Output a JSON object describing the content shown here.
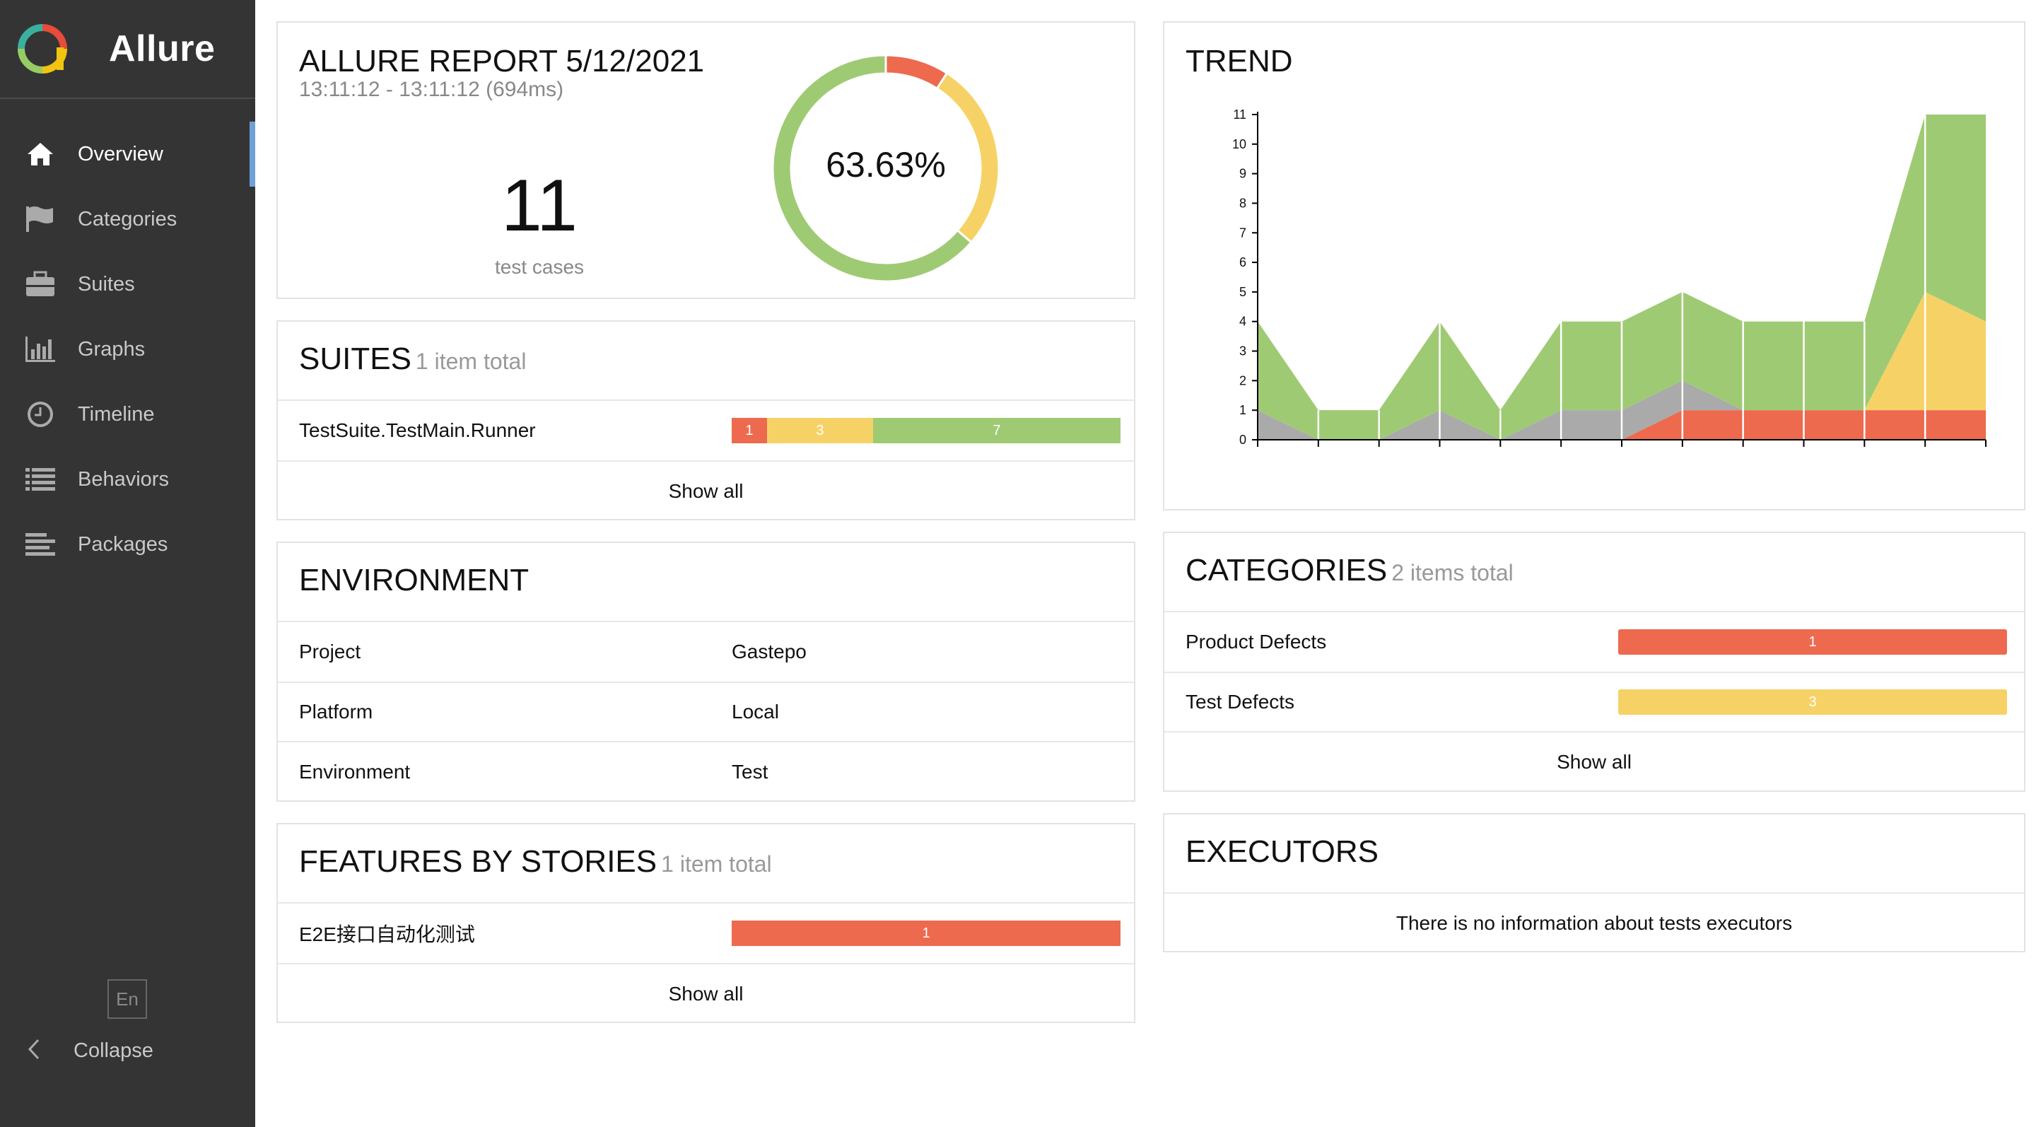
{
  "app": {
    "name": "Allure"
  },
  "sidebar": {
    "items": [
      {
        "label": "Overview",
        "icon": "home-icon",
        "active": true
      },
      {
        "label": "Categories",
        "icon": "flag-icon",
        "active": false
      },
      {
        "label": "Suites",
        "icon": "briefcase-icon",
        "active": false
      },
      {
        "label": "Graphs",
        "icon": "bar-chart-icon",
        "active": false
      },
      {
        "label": "Timeline",
        "icon": "clock-icon",
        "active": false
      },
      {
        "label": "Behaviors",
        "icon": "list-icon",
        "active": false
      },
      {
        "label": "Packages",
        "icon": "align-left-icon",
        "active": false
      }
    ],
    "language": "En",
    "collapse_label": "Collapse"
  },
  "report": {
    "title": "ALLURE REPORT 5/12/2021",
    "time_range": "13:11:12 - 13:11:12 (694ms)",
    "test_count": "11",
    "test_count_label": "test cases",
    "success_rate": "63.63%",
    "donut": {
      "failed": 1,
      "broken": 3,
      "passed": 7
    }
  },
  "suites": {
    "title": "SUITES",
    "total": "1 item total",
    "items": [
      {
        "name": "TestSuite.TestMain.Runner",
        "failed": 1,
        "broken": 3,
        "passed": 7
      }
    ],
    "show_all": "Show all"
  },
  "environment": {
    "title": "ENVIRONMENT",
    "rows": [
      {
        "key": "Project",
        "value": "Gastepo"
      },
      {
        "key": "Platform",
        "value": "Local"
      },
      {
        "key": "Environment",
        "value": "Test"
      }
    ]
  },
  "features": {
    "title": "FEATURES BY STORIES",
    "total": "1 item total",
    "items": [
      {
        "name": "E2E接口自动化测试",
        "failed": 1
      }
    ],
    "show_all": "Show all"
  },
  "trend": {
    "title": "TREND",
    "chart_data": {
      "type": "area",
      "y_ticks": [
        "0",
        "1",
        "2",
        "3",
        "4",
        "5",
        "6",
        "7",
        "8",
        "9",
        "10",
        "11"
      ],
      "ylim": [
        0,
        11
      ],
      "points": 13,
      "series": [
        {
          "color": "#ed6a4f",
          "values": [
            0,
            0,
            0,
            0,
            0,
            0,
            0,
            1,
            1,
            1,
            1,
            1,
            1
          ]
        },
        {
          "color": "#f6d266",
          "values": [
            0,
            0,
            0,
            0,
            0,
            0,
            0,
            0,
            0,
            0,
            0,
            4,
            3
          ]
        },
        {
          "color": "#aaaaaa",
          "values": [
            1,
            0,
            0,
            1,
            0,
            1,
            1,
            1,
            0,
            0,
            0,
            0,
            0
          ]
        },
        {
          "color": "#9fca74",
          "values": [
            3,
            1,
            1,
            3,
            1,
            3,
            3,
            3,
            3,
            3,
            3,
            6,
            7
          ]
        }
      ]
    }
  },
  "categories": {
    "title": "CATEGORIES",
    "total": "2 items total",
    "items": [
      {
        "name": "Product Defects",
        "count": "1",
        "type": "failed"
      },
      {
        "name": "Test Defects",
        "count": "3",
        "type": "broken"
      }
    ],
    "show_all": "Show all"
  },
  "executors": {
    "title": "EXECUTORS",
    "empty_text": "There is no information about tests executors"
  }
}
